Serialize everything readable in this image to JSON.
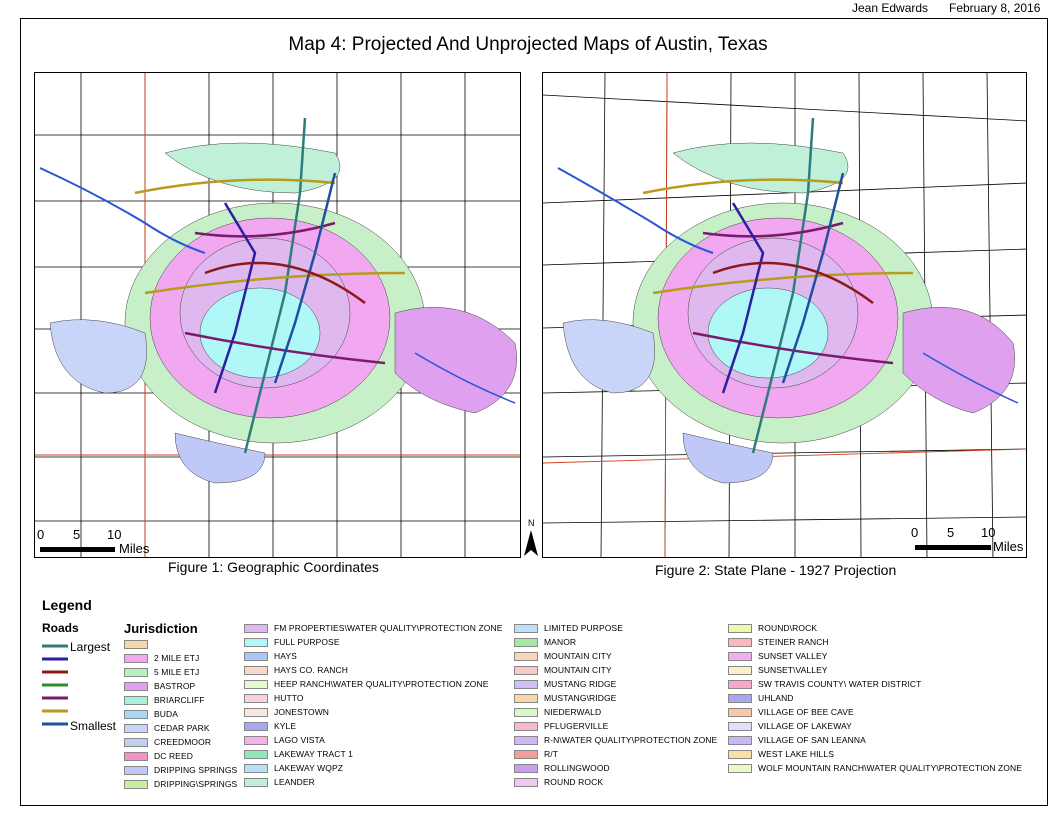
{
  "header": {
    "author": "Jean Edwards",
    "date": "February 8, 2016"
  },
  "title": "Map 4: Projected And Unprojected Maps of Austin, Texas",
  "figures": [
    {
      "caption": "Figure 1: Geographic Coordinates"
    },
    {
      "caption": "Figure 2: State Plane - 1927 Projection"
    }
  ],
  "scalebar": {
    "ticks": [
      "0",
      "5",
      "10"
    ],
    "unit": "Miles"
  },
  "north_arrow": "N",
  "legend": {
    "title": "Legend",
    "roads": {
      "title": "Roads",
      "largest": "Largest",
      "smallest": "Smallest",
      "colors": [
        "#2e7b7b",
        "#2b1f9e",
        "#8b1a1a",
        "#2e8b2e",
        "#7a1c6b",
        "#b89a1f",
        "#1f4f9e"
      ]
    },
    "jurisdiction": {
      "title": "Jurisdiction",
      "columns": [
        [
          {
            "label": "",
            "color": "#f6d8a8"
          },
          {
            "label": "2 MILE ETJ",
            "color": "#f2a8f0"
          },
          {
            "label": "5 MILE ETJ",
            "color": "#b8f0c0"
          },
          {
            "label": "BASTROP",
            "color": "#e0a0f0"
          },
          {
            "label": "BRIARCLIFF",
            "color": "#a8f0d8"
          },
          {
            "label": "BUDA",
            "color": "#a8d8f8"
          },
          {
            "label": "CEDAR PARK",
            "color": "#c8d4f8"
          },
          {
            "label": "CREEDMOOR",
            "color": "#c0d0f0"
          },
          {
            "label": "DC REED",
            "color": "#f890c8"
          },
          {
            "label": "DRIPPING SPRINGS",
            "color": "#c0c8f8"
          },
          {
            "label": "DRIPPING\\SPRINGS",
            "color": "#c8f0a0"
          }
        ],
        [
          {
            "label": "FM PROPERTIES\\WATER QUALITY\\PROTECTION ZONE",
            "color": "#e0b8f0"
          },
          {
            "label": "FULL PURPOSE",
            "color": "#b0f8f8"
          },
          {
            "label": "HAYS",
            "color": "#a8c8f8"
          },
          {
            "label": "HAYS CO. RANCH",
            "color": "#f8d8c8"
          },
          {
            "label": "HEEP RANCH\\WATER QUALITY\\PROTECTION ZONE",
            "color": "#e8f8d0"
          },
          {
            "label": "HUTTO",
            "color": "#f8d0e0"
          },
          {
            "label": "JONESTOWN",
            "color": "#f8e8e0"
          },
          {
            "label": "KYLE",
            "color": "#a8a8f0"
          },
          {
            "label": "LAGO VISTA",
            "color": "#f8b0e8"
          },
          {
            "label": "LAKEWAY TRACT 1",
            "color": "#90e8b8"
          },
          {
            "label": "LAKEWAY WQPZ",
            "color": "#b8e0f8"
          },
          {
            "label": "LEANDER",
            "color": "#c0f0d8"
          }
        ],
        [
          {
            "label": "LIMITED PURPOSE",
            "color": "#c0e0f8"
          },
          {
            "label": "MANOR",
            "color": "#a8e8a8"
          },
          {
            "label": "MOUNTAIN CITY",
            "color": "#f8d8b8"
          },
          {
            "label": "MOUNTAIN  CITY",
            "color": "#f8c8c8"
          },
          {
            "label": "MUSTANG RIDGE",
            "color": "#d0c0f8"
          },
          {
            "label": "MUSTANG\\RIDGE",
            "color": "#f8d8a8"
          },
          {
            "label": "NIEDERWALD",
            "color": "#d8f8c8"
          },
          {
            "label": "PFLUGERVILLE",
            "color": "#f8b8d0"
          },
          {
            "label": "R-N\\WATER QUALITY\\PROTECTION ZONE",
            "color": "#d0b8f8"
          },
          {
            "label": "R/T",
            "color": "#f0a098"
          },
          {
            "label": "ROLLINGWOOD",
            "color": "#c8a0f0"
          },
          {
            "label": "ROUND ROCK",
            "color": "#f0c8f0"
          }
        ],
        [
          {
            "label": "ROUND\\ROCK",
            "color": "#f0f8b0"
          },
          {
            "label": "STEINER RANCH",
            "color": "#f8b8c0"
          },
          {
            "label": "SUNSET VALLEY",
            "color": "#f0b0f0"
          },
          {
            "label": "SUNSET\\VALLEY",
            "color": "#f8f0c8"
          },
          {
            "label": "SW TRAVIS COUNTY\\ WATER DISTRICT",
            "color": "#f8a8c8"
          },
          {
            "label": "UHLAND",
            "color": "#a8a8f0"
          },
          {
            "label": "VILLAGE OF BEE CAVE",
            "color": "#f8c8a8"
          },
          {
            "label": "VILLAGE OF LAKEWAY",
            "color": "#e0e0f8"
          },
          {
            "label": "VILLAGE OF SAN LEANNA",
            "color": "#c8b8f8"
          },
          {
            "label": "WEST LAKE HILLS",
            "color": "#f8e0a8"
          },
          {
            "label": "WOLF MOUNTAIN RANCH\\WATER QUALITY\\PROTECTION ZONE",
            "color": "#e8f8c8"
          }
        ]
      ]
    }
  }
}
